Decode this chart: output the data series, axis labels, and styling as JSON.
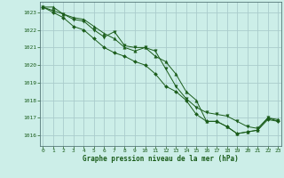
{
  "title": "Graphe pression niveau de la mer (hPa)",
  "bg_color": "#cceee8",
  "grid_color": "#aacccc",
  "line_color": "#1a5c1a",
  "marker_color": "#1a5c1a",
  "xlim": [
    -0.3,
    23.3
  ],
  "ylim": [
    1015.4,
    1023.6
  ],
  "yticks": [
    1016,
    1017,
    1018,
    1019,
    1020,
    1021,
    1022,
    1023
  ],
  "xticks": [
    0,
    1,
    2,
    3,
    4,
    5,
    6,
    7,
    8,
    9,
    10,
    11,
    12,
    13,
    14,
    15,
    16,
    17,
    18,
    19,
    20,
    21,
    22,
    23
  ],
  "series": [
    [
      1023.3,
      1023.3,
      1022.9,
      1022.7,
      1022.6,
      1022.2,
      1021.8,
      1021.5,
      1021.0,
      1020.8,
      1021.0,
      1020.5,
      1020.2,
      1019.5,
      1018.5,
      1018.0,
      1016.8,
      1016.8,
      1016.5,
      1016.1,
      1016.2,
      1016.3,
      1017.0,
      1016.9
    ],
    [
      1023.3,
      1023.1,
      1022.9,
      1022.6,
      1022.5,
      1022.0,
      1021.6,
      1021.9,
      1021.1,
      1021.0,
      1021.0,
      1020.8,
      1019.8,
      1018.8,
      1018.1,
      1017.6,
      1017.3,
      1017.2,
      1017.1,
      1016.8,
      1016.5,
      1016.4,
      1017.0,
      1016.8
    ],
    [
      1023.3,
      1023.0,
      1022.7,
      1022.2,
      1022.0,
      1021.5,
      1021.0,
      1020.7,
      1020.5,
      1020.2,
      1020.0,
      1019.5,
      1018.8,
      1018.5,
      1018.0,
      1017.2,
      1016.8,
      1016.8,
      1016.5,
      1016.1,
      1016.2,
      1016.3,
      1016.9,
      1016.8
    ]
  ]
}
